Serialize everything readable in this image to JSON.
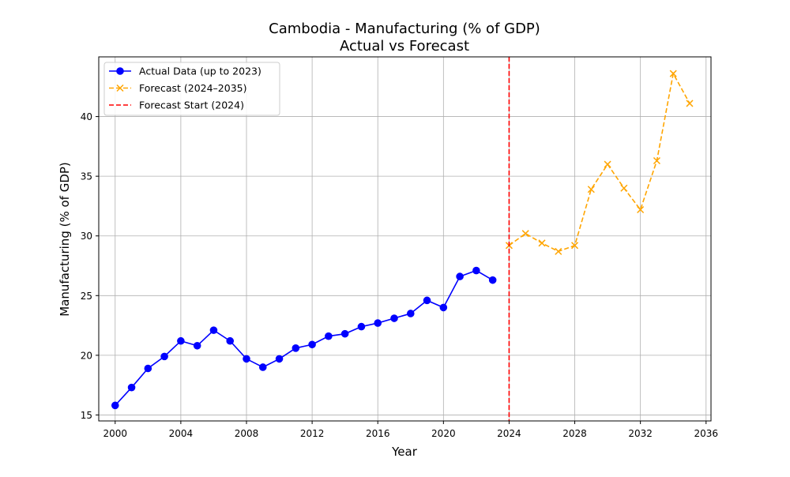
{
  "chart_data": {
    "type": "line",
    "title": "Cambodia - Manufacturing (% of GDP)",
    "subtitle": "Actual vs Forecast",
    "xlabel": "Year",
    "ylabel": "Manufacturing (% of GDP)",
    "xlim": [
      1999,
      2036.3
    ],
    "ylim": [
      14.5,
      45.0
    ],
    "xticks": [
      2000,
      2004,
      2008,
      2012,
      2016,
      2020,
      2024,
      2028,
      2032,
      2036
    ],
    "yticks": [
      15,
      20,
      25,
      30,
      35,
      40
    ],
    "grid": true,
    "legend_position": "top-left",
    "series": [
      {
        "name": "Actual Data (up to 2023)",
        "color": "#0000ff",
        "style": "solid",
        "marker": "circle",
        "x": [
          2000,
          2001,
          2002,
          2003,
          2004,
          2005,
          2006,
          2007,
          2008,
          2009,
          2010,
          2011,
          2012,
          2013,
          2014,
          2015,
          2016,
          2017,
          2018,
          2019,
          2020,
          2021,
          2022,
          2023
        ],
        "y": [
          15.8,
          17.3,
          18.9,
          19.9,
          21.2,
          20.8,
          22.1,
          21.2,
          19.7,
          19.0,
          19.7,
          20.6,
          20.9,
          21.6,
          21.8,
          22.4,
          22.7,
          23.1,
          23.5,
          24.6,
          24.0,
          26.6,
          27.1,
          26.3
        ]
      },
      {
        "name": "Forecast (2024–2035)",
        "color": "#ffa500",
        "style": "dashed",
        "marker": "x",
        "x": [
          2024,
          2025,
          2026,
          2027,
          2028,
          2029,
          2030,
          2031,
          2032,
          2033,
          2034,
          2035
        ],
        "y": [
          29.2,
          30.2,
          29.4,
          28.7,
          29.2,
          33.9,
          36.0,
          34.0,
          32.2,
          36.3,
          43.6,
          41.1
        ]
      }
    ],
    "vlines": [
      {
        "name": "Forecast Start (2024)",
        "x": 2024,
        "color": "#ff0000",
        "style": "dashed"
      }
    ]
  }
}
